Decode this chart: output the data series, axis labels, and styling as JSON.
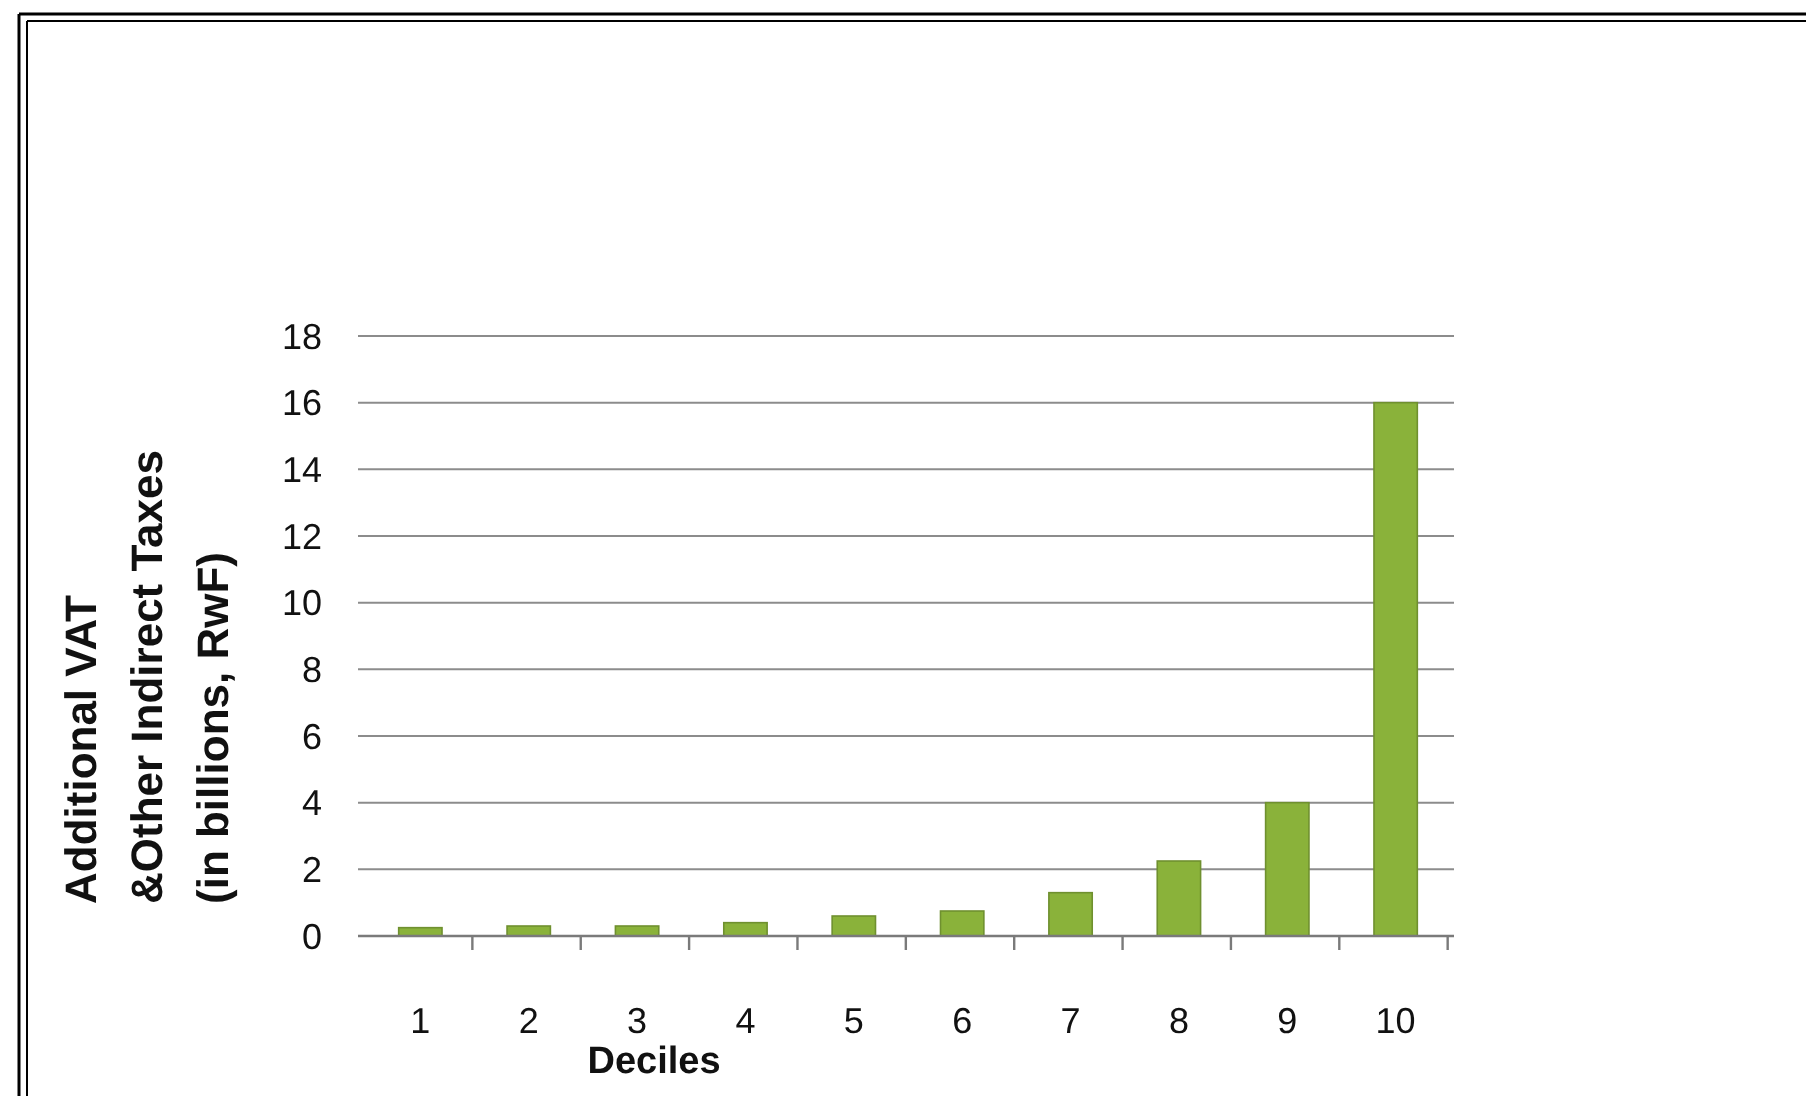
{
  "chart_data": {
    "type": "bar",
    "xlabel": "Deciles",
    "ylabel": "Additional VAT\n&Other Indirect Taxes\n(in billions, RwF)",
    "categories": [
      "1",
      "2",
      "3",
      "4",
      "5",
      "6",
      "7",
      "8",
      "9",
      "10"
    ],
    "values": [
      0.25,
      0.3,
      0.3,
      0.4,
      0.6,
      0.75,
      1.3,
      2.25,
      4.0,
      16.0
    ],
    "color": "#8ab23a",
    "ylim": [
      0,
      18
    ],
    "yticks": [
      0,
      2,
      4,
      6,
      8,
      10,
      12,
      14,
      16,
      18
    ],
    "grid": "y"
  }
}
